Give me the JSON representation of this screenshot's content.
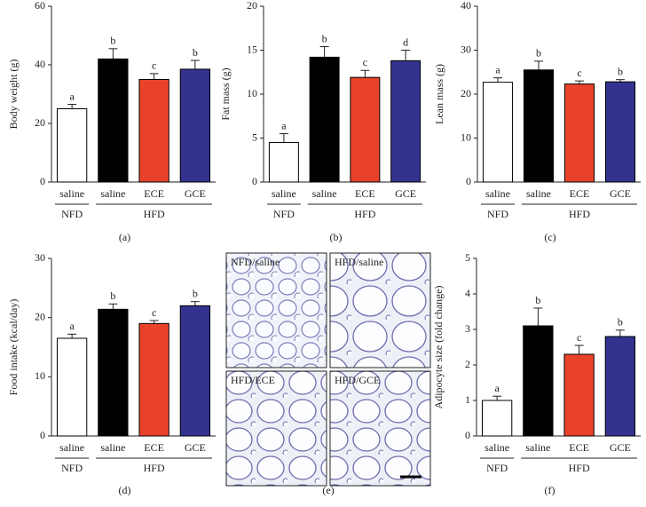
{
  "chart_data": [
    {
      "type": "bar",
      "panel_label": "(a)",
      "ylabel": "Body weight (g)",
      "categories": [
        "saline",
        "saline",
        "ECE",
        "GCE"
      ],
      "groups": [
        "NFD",
        "HFD",
        "HFD",
        "HFD"
      ],
      "values": [
        25,
        42,
        35,
        38.5
      ],
      "errors": [
        1.5,
        3.5,
        2,
        3
      ],
      "annotations": [
        "a",
        "b",
        "c",
        "b"
      ],
      "colors": [
        "#ffffff",
        "#000000",
        "#e8432a",
        "#33338f"
      ],
      "ylim": [
        0,
        60
      ],
      "yticks": [
        0,
        20,
        40,
        60
      ]
    },
    {
      "type": "bar",
      "panel_label": "(b)",
      "ylabel": "Fat mass (g)",
      "categories": [
        "saline",
        "saline",
        "ECE",
        "GCE"
      ],
      "groups": [
        "NFD",
        "HFD",
        "HFD",
        "HFD"
      ],
      "values": [
        4.5,
        14.2,
        11.9,
        13.8
      ],
      "errors": [
        1,
        1.2,
        0.8,
        1.2
      ],
      "annotations": [
        "a",
        "b",
        "c",
        "d"
      ],
      "colors": [
        "#ffffff",
        "#000000",
        "#e8432a",
        "#33338f"
      ],
      "ylim": [
        0,
        20
      ],
      "yticks": [
        0,
        5,
        10,
        15,
        20
      ]
    },
    {
      "type": "bar",
      "panel_label": "(c)",
      "ylabel": "Lean mass (g)",
      "categories": [
        "saline",
        "saline",
        "ECE",
        "GCE"
      ],
      "groups": [
        "NFD",
        "HFD",
        "HFD",
        "HFD"
      ],
      "values": [
        22.7,
        25.5,
        22.3,
        22.8
      ],
      "errors": [
        1,
        2,
        0.7,
        0.5
      ],
      "annotations": [
        "a",
        "b",
        "c",
        "b"
      ],
      "colors": [
        "#ffffff",
        "#000000",
        "#e8432a",
        "#33338f"
      ],
      "ylim": [
        0,
        40
      ],
      "yticks": [
        0,
        10,
        20,
        30,
        40
      ]
    },
    {
      "type": "bar",
      "panel_label": "(d)",
      "ylabel": "Food intake (kcal/day)",
      "categories": [
        "saline",
        "saline",
        "ECE",
        "GCE"
      ],
      "groups": [
        "NFD",
        "HFD",
        "HFD",
        "HFD"
      ],
      "values": [
        16.5,
        21.4,
        19,
        22
      ],
      "errors": [
        0.7,
        0.9,
        0.5,
        0.7
      ],
      "annotations": [
        "a",
        "b",
        "c",
        "b"
      ],
      "colors": [
        "#ffffff",
        "#000000",
        "#e8432a",
        "#33338f"
      ],
      "ylim": [
        0,
        30
      ],
      "yticks": [
        0,
        10,
        20,
        30
      ]
    },
    {
      "type": "image",
      "panel_label": "(e)",
      "panels": [
        "NFD/saline",
        "HFD/saline",
        "HFD/ECE",
        "HFD/GCE"
      ]
    },
    {
      "type": "bar",
      "panel_label": "(f)",
      "ylabel": "Adipocyte size (fold change)",
      "categories": [
        "saline",
        "saline",
        "ECE",
        "GCE"
      ],
      "groups": [
        "NFD",
        "HFD",
        "HFD",
        "HFD"
      ],
      "values": [
        1,
        3.1,
        2.3,
        2.8
      ],
      "errors": [
        0.12,
        0.5,
        0.25,
        0.18
      ],
      "annotations": [
        "a",
        "b",
        "c",
        "b"
      ],
      "colors": [
        "#ffffff",
        "#000000",
        "#e8432a",
        "#33338f"
      ],
      "ylim": [
        0,
        5
      ],
      "yticks": [
        0,
        1,
        2,
        3,
        4,
        5
      ]
    }
  ]
}
